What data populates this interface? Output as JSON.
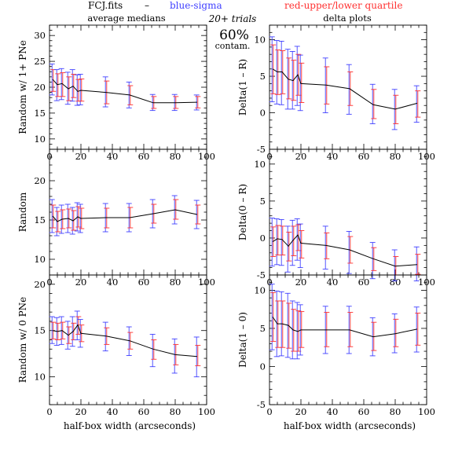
{
  "header": {
    "file": "FCJ.fits",
    "dash": "–",
    "blue_label": "blue-sigma",
    "red_label": "red-upper/lower quartile",
    "blue_color": "#4040ff",
    "red_color": "#ff3030"
  },
  "center_note": {
    "trials": "20+ trials",
    "percent": "60%",
    "contam": "contam."
  },
  "column_titles": {
    "left": "average medians",
    "right": "delta plots"
  },
  "xlabel": "half-box width (arcseconds)",
  "chart_data": [
    {
      "type": "line",
      "id": "p1",
      "ylabel": "Random w/ 1+ PNe",
      "xlim": [
        0,
        100
      ],
      "ylim": [
        8,
        32
      ],
      "xticks": [
        0,
        20,
        40,
        60,
        80,
        100
      ],
      "yticks": [
        10,
        15,
        20,
        25,
        30
      ],
      "x": [
        2,
        5,
        8,
        12,
        15,
        18,
        20,
        36,
        51,
        66,
        80,
        94
      ],
      "y": [
        21.5,
        20.5,
        20.7,
        19.7,
        20.2,
        19.2,
        19.4,
        19.0,
        18.5,
        17.0,
        17.0,
        17.1
      ],
      "sigma_low": [
        18.5,
        17.4,
        17.6,
        16.7,
        17.3,
        16.5,
        16.6,
        16.2,
        16.0,
        15.5,
        15.5,
        15.6
      ],
      "sigma_high": [
        24.5,
        23.4,
        23.6,
        22.9,
        23.4,
        22.4,
        22.5,
        22.0,
        21.0,
        18.6,
        18.6,
        18.5
      ],
      "q_low": [
        19.2,
        18.2,
        18.2,
        17.4,
        18.0,
        17.3,
        17.3,
        16.8,
        16.6,
        15.9,
        15.9,
        16.0
      ],
      "q_high": [
        23.4,
        22.6,
        22.8,
        22.0,
        22.5,
        21.5,
        21.6,
        21.2,
        20.3,
        18.2,
        18.2,
        18.2
      ]
    },
    {
      "type": "line",
      "id": "p2",
      "ylabel": "Delta(1 – R)",
      "xlim": [
        0,
        100
      ],
      "ylim": [
        -5,
        12
      ],
      "xticks": [
        0,
        20,
        40,
        60,
        80,
        100
      ],
      "yticks": [
        -5,
        0,
        5,
        10
      ],
      "x": [
        2,
        5,
        8,
        12,
        15,
        18,
        20,
        36,
        51,
        66,
        80,
        94
      ],
      "y": [
        6.0,
        5.6,
        5.6,
        4.6,
        4.4,
        5.2,
        4.0,
        3.8,
        3.3,
        1.1,
        0.5,
        1.3
      ],
      "sigma_low": [
        1.5,
        1.2,
        1.1,
        0.5,
        0.5,
        1.0,
        0.3,
        0.0,
        -0.2,
        -1.5,
        -2.3,
        -1.3
      ],
      "sigma_high": [
        10.4,
        9.9,
        9.8,
        8.7,
        8.4,
        9.1,
        7.9,
        7.5,
        6.6,
        3.9,
        3.2,
        3.7
      ],
      "q_low": [
        2.6,
        2.5,
        2.6,
        1.9,
        1.7,
        2.4,
        1.4,
        1.2,
        1.0,
        -0.8,
        -1.5,
        -0.6
      ],
      "q_high": [
        9.3,
        8.6,
        8.5,
        7.5,
        7.2,
        8.0,
        6.8,
        6.3,
        5.6,
        3.2,
        2.4,
        3.0
      ]
    },
    {
      "type": "line",
      "id": "p3",
      "ylabel": "Random",
      "xlim": [
        0,
        100
      ],
      "ylim": [
        8,
        24
      ],
      "xticks": [
        0,
        20,
        40,
        60,
        80,
        100
      ],
      "yticks": [
        10,
        15,
        20
      ],
      "x": [
        2,
        5,
        8,
        12,
        15,
        18,
        20,
        36,
        51,
        66,
        80,
        94
      ],
      "y": [
        15.5,
        14.8,
        15.1,
        15.2,
        14.9,
        15.4,
        15.2,
        15.3,
        15.3,
        15.8,
        16.3,
        15.7
      ],
      "sigma_low": [
        13.4,
        13.0,
        13.3,
        13.4,
        13.2,
        13.6,
        13.4,
        13.5,
        13.5,
        14.0,
        14.5,
        13.9
      ],
      "sigma_high": [
        17.6,
        16.6,
        16.9,
        17.0,
        16.6,
        17.2,
        17.0,
        17.1,
        17.1,
        17.6,
        18.1,
        17.5
      ],
      "q_low": [
        14.0,
        13.5,
        13.9,
        14.0,
        13.7,
        14.1,
        13.9,
        14.0,
        14.0,
        14.6,
        15.1,
        14.5
      ],
      "q_high": [
        16.9,
        16.1,
        16.3,
        16.4,
        16.2,
        16.7,
        16.5,
        16.5,
        16.6,
        17.0,
        17.6,
        16.9
      ]
    },
    {
      "type": "line",
      "id": "p4",
      "ylabel": "Delta(0 – R)",
      "xlim": [
        0,
        100
      ],
      "ylim": [
        -5,
        12
      ],
      "xticks": [
        0,
        20,
        40,
        60,
        80,
        100
      ],
      "yticks": [
        -5,
        0,
        5,
        10
      ],
      "x": [
        2,
        5,
        8,
        12,
        15,
        18,
        20,
        36,
        51,
        66,
        80,
        94
      ],
      "y": [
        -0.5,
        -0.1,
        -0.2,
        -1.1,
        -0.3,
        0.4,
        -0.7,
        -1.0,
        -1.6,
        -2.8,
        -3.8,
        -3.6
      ],
      "sigma_low": [
        -3.8,
        -3.6,
        -3.7,
        -4.6,
        -3.7,
        -3.0,
        -4.0,
        -4.2,
        -4.8,
        -5.5,
        -5.8,
        -5.8
      ],
      "sigma_high": [
        2.7,
        2.6,
        2.5,
        1.6,
        2.4,
        2.6,
        1.9,
        1.6,
        0.9,
        -0.6,
        -1.6,
        -1.2
      ],
      "q_low": [
        -2.5,
        -2.3,
        -2.3,
        -3.1,
        -2.4,
        -1.7,
        -2.7,
        -2.8,
        -3.4,
        -4.4,
        -5.0,
        -4.9
      ],
      "q_high": [
        1.5,
        1.7,
        1.6,
        0.8,
        1.6,
        1.8,
        1.0,
        0.7,
        0.2,
        -1.3,
        -2.5,
        -2.2
      ]
    },
    {
      "type": "line",
      "id": "p5",
      "ylabel": "Random w/ 0 PNe",
      "xlim": [
        0,
        100
      ],
      "ylim": [
        7,
        21
      ],
      "xticks": [
        0,
        20,
        40,
        60,
        80,
        100
      ],
      "yticks": [
        10,
        15,
        20
      ],
      "x": [
        2,
        5,
        8,
        12,
        15,
        18,
        20,
        36,
        51,
        66,
        80,
        94
      ],
      "y": [
        15.0,
        14.9,
        15.0,
        14.5,
        14.9,
        15.6,
        14.7,
        14.4,
        13.9,
        13.0,
        12.4,
        12.2
      ],
      "sigma_low": [
        13.6,
        13.4,
        13.5,
        13.0,
        13.3,
        14.0,
        13.2,
        12.8,
        12.3,
        11.1,
        10.4,
        10.0
      ],
      "sigma_high": [
        16.5,
        16.4,
        16.5,
        16.0,
        16.5,
        17.1,
        16.2,
        15.9,
        15.4,
        14.6,
        14.1,
        14.3
      ],
      "q_low": [
        14.1,
        14.0,
        14.1,
        13.6,
        14.0,
        14.6,
        13.8,
        13.5,
        13.0,
        11.9,
        11.3,
        11.2
      ],
      "q_high": [
        15.9,
        15.8,
        15.9,
        15.4,
        15.8,
        16.5,
        15.6,
        15.3,
        14.8,
        14.0,
        13.5,
        13.4
      ]
    },
    {
      "type": "line",
      "id": "p6",
      "ylabel": "Delta(1 – 0)",
      "xlim": [
        0,
        100
      ],
      "ylim": [
        -5,
        12
      ],
      "xticks": [
        0,
        20,
        40,
        60,
        80,
        100
      ],
      "yticks": [
        -5,
        0,
        5,
        10
      ],
      "x": [
        2,
        5,
        8,
        12,
        15,
        18,
        20,
        36,
        51,
        66,
        80,
        94
      ],
      "y": [
        6.5,
        5.6,
        5.6,
        5.4,
        4.8,
        4.6,
        4.8,
        4.8,
        4.8,
        3.9,
        4.3,
        4.9
      ],
      "sigma_low": [
        2.2,
        1.3,
        1.4,
        1.2,
        1.0,
        1.0,
        1.5,
        1.7,
        1.7,
        1.4,
        1.8,
        1.9
      ],
      "sigma_high": [
        10.8,
        9.9,
        9.8,
        9.6,
        8.6,
        8.4,
        8.1,
        7.9,
        7.9,
        6.4,
        6.9,
        7.8
      ],
      "q_low": [
        3.3,
        2.5,
        2.5,
        2.4,
        2.0,
        2.0,
        2.5,
        2.6,
        2.6,
        2.1,
        2.6,
        2.8
      ],
      "q_high": [
        9.7,
        8.6,
        8.6,
        8.3,
        7.5,
        7.3,
        7.2,
        7.1,
        7.1,
        5.8,
        6.2,
        7.0
      ]
    }
  ]
}
